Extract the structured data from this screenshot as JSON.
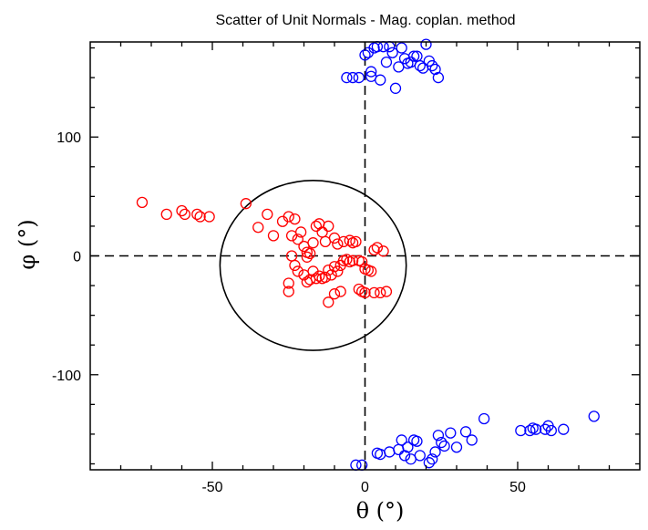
{
  "chart_data": {
    "type": "scatter",
    "title": "Scatter of Unit Normals - Mag. coplan. method",
    "xlabel": "θ (°)",
    "ylabel": "φ (°)",
    "xlim": [
      -90,
      90
    ],
    "ylim": [
      -180,
      180
    ],
    "xticks": [
      {
        "value": -50,
        "label": "-50"
      },
      {
        "value": 0,
        "label": "0"
      },
      {
        "value": 50,
        "label": "50"
      }
    ],
    "yticks": [
      {
        "value": 100,
        "label": "100"
      },
      {
        "value": 0,
        "label": "0"
      },
      {
        "value": -100,
        "label": "-100"
      }
    ],
    "reference_lines": {
      "x": 0,
      "y": 0,
      "style": "dashed"
    },
    "circle": {
      "center": [
        -17,
        -8
      ],
      "radius_x": 30.5,
      "radius_y": 71.5
    },
    "series": [
      {
        "name": "red",
        "color": "#ff0000",
        "points": [
          [
            -73,
            45
          ],
          [
            -65,
            35
          ],
          [
            -60,
            38
          ],
          [
            -59,
            35
          ],
          [
            -55,
            35
          ],
          [
            -54,
            33
          ],
          [
            -51,
            33
          ],
          [
            -39,
            44
          ],
          [
            -35,
            24
          ],
          [
            -32,
            35
          ],
          [
            -30,
            17
          ],
          [
            -27,
            29
          ],
          [
            -25,
            33
          ],
          [
            -24,
            17
          ],
          [
            -23,
            31
          ],
          [
            -22,
            14
          ],
          [
            -21,
            20
          ],
          [
            -20,
            8
          ],
          [
            -19,
            -1
          ],
          [
            -17,
            11
          ],
          [
            -16,
            25
          ],
          [
            -15,
            27
          ],
          [
            -14,
            20
          ],
          [
            -13,
            12
          ],
          [
            -12,
            25
          ],
          [
            -10,
            15
          ],
          [
            -9,
            10
          ],
          [
            -7,
            12
          ],
          [
            -5,
            13
          ],
          [
            -4,
            11
          ],
          [
            -3,
            12
          ],
          [
            -24,
            0
          ],
          [
            -23,
            -8
          ],
          [
            -22,
            -13
          ],
          [
            -20,
            -16
          ],
          [
            -19,
            -22
          ],
          [
            -18,
            -20
          ],
          [
            -17,
            -13
          ],
          [
            -16,
            -19
          ],
          [
            -15,
            -17
          ],
          [
            -14,
            -19
          ],
          [
            -13,
            -18
          ],
          [
            -12,
            -12
          ],
          [
            -11,
            -16
          ],
          [
            -10,
            -9
          ],
          [
            -9,
            -13
          ],
          [
            -8,
            -8
          ],
          [
            -7,
            -4
          ],
          [
            -6,
            -3
          ],
          [
            -5,
            -5
          ],
          [
            -4,
            -4
          ],
          [
            -2,
            -4
          ],
          [
            -1,
            -5
          ],
          [
            0,
            -11
          ],
          [
            1,
            -12
          ],
          [
            2,
            -13
          ],
          [
            3,
            5
          ],
          [
            4,
            7
          ],
          [
            6,
            4
          ],
          [
            -25,
            -23
          ],
          [
            -25,
            -30
          ],
          [
            -12,
            -39
          ],
          [
            -10,
            -32
          ],
          [
            -8,
            -30
          ],
          [
            -2,
            -28
          ],
          [
            -1,
            -30
          ],
          [
            0,
            -31
          ],
          [
            3,
            -31
          ],
          [
            5,
            -31
          ],
          [
            7,
            -30
          ],
          [
            -18,
            2
          ],
          [
            -19,
            3
          ]
        ]
      },
      {
        "name": "blue",
        "color": "#0000ff",
        "points": [
          [
            -6,
            150
          ],
          [
            -4,
            150
          ],
          [
            -2,
            150
          ],
          [
            0,
            169
          ],
          [
            1,
            171
          ],
          [
            2,
            151
          ],
          [
            2,
            155
          ],
          [
            3,
            175
          ],
          [
            4,
            176
          ],
          [
            5,
            148
          ],
          [
            6,
            176
          ],
          [
            7,
            163
          ],
          [
            8,
            176
          ],
          [
            9,
            171
          ],
          [
            10,
            141
          ],
          [
            11,
            159
          ],
          [
            12,
            175
          ],
          [
            13,
            166
          ],
          [
            14,
            162
          ],
          [
            15,
            163
          ],
          [
            16,
            168
          ],
          [
            17,
            168
          ],
          [
            18,
            160
          ],
          [
            19,
            158
          ],
          [
            20,
            178
          ],
          [
            21,
            164
          ],
          [
            22,
            160
          ],
          [
            23,
            157
          ],
          [
            24,
            150
          ],
          [
            -3,
            -176
          ],
          [
            -1,
            -176
          ],
          [
            4,
            -166
          ],
          [
            5,
            -167
          ],
          [
            8,
            -165
          ],
          [
            11,
            -163
          ],
          [
            12,
            -155
          ],
          [
            13,
            -168
          ],
          [
            14,
            -161
          ],
          [
            15,
            -171
          ],
          [
            16,
            -155
          ],
          [
            17,
            -156
          ],
          [
            18,
            -168
          ],
          [
            21,
            -174
          ],
          [
            22,
            -171
          ],
          [
            23,
            -165
          ],
          [
            24,
            -151
          ],
          [
            25,
            -157
          ],
          [
            26,
            -160
          ],
          [
            28,
            -149
          ],
          [
            30,
            -161
          ],
          [
            33,
            -148
          ],
          [
            35,
            -155
          ],
          [
            39,
            -137
          ],
          [
            51,
            -147
          ],
          [
            54,
            -147
          ],
          [
            55,
            -145
          ],
          [
            56,
            -146
          ],
          [
            59,
            -146
          ],
          [
            60,
            -143
          ],
          [
            61,
            -147
          ],
          [
            65,
            -146
          ],
          [
            75,
            -135
          ]
        ]
      }
    ]
  }
}
